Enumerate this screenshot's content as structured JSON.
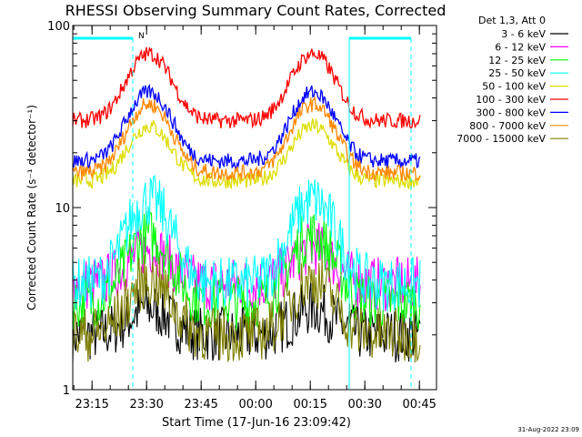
{
  "chart_data": {
    "type": "line",
    "title": "RHESSI Observing Summary Count Rates, Corrected",
    "xlabel": "Start Time (17-Jun-16 23:09:42)",
    "ylabel": "Corrected Count Rate (s⁻¹ detector⁻¹)",
    "y_scale": "log",
    "ylim": [
      1,
      100
    ],
    "y_ticks": [
      {
        "value": 1,
        "label": "1"
      },
      {
        "value": 10,
        "label": "10"
      },
      {
        "value": 100,
        "label": "100"
      }
    ],
    "x_unit": "minutes from 23:09:42",
    "xlim": [
      0,
      100
    ],
    "x_ticks": [
      {
        "value": 5.3,
        "label": "23:15"
      },
      {
        "value": 20.3,
        "label": "23:30"
      },
      {
        "value": 35.3,
        "label": "23:45"
      },
      {
        "value": 50.3,
        "label": "00:00"
      },
      {
        "value": 65.3,
        "label": "00:15"
      },
      {
        "value": 80.3,
        "label": "00:30"
      },
      {
        "value": 95.3,
        "label": "00:45"
      }
    ],
    "legend_header": "Det 1,3, Att 0",
    "legend_position": "top-right outside",
    "series": [
      {
        "name": "3 - 6 keV",
        "color": "#000000",
        "base": 2.0,
        "peak": 2.8
      },
      {
        "name": "6 - 12 keV",
        "color": "#ff00ff",
        "base": 3.8,
        "peak": 6.0
      },
      {
        "name": "12 - 25 keV",
        "color": "#00ff00",
        "base": 3.0,
        "peak": 7.0
      },
      {
        "name": "25 - 50 keV",
        "color": "#00ffff",
        "base": 3.8,
        "peak": 11.0
      },
      {
        "name": "50 - 100 keV",
        "color": "#dddd00",
        "base": 14.0,
        "peak": 28.0
      },
      {
        "name": "100 - 300 keV",
        "color": "#ff0000",
        "base": 30.0,
        "peak": 70.0
      },
      {
        "name": "300 - 800 keV",
        "color": "#0000ff",
        "base": 18.0,
        "peak": 43.0
      },
      {
        "name": "800 - 7000 keV",
        "color": "#ff8800",
        "base": 15.5,
        "peak": 37.0
      },
      {
        "name": "7000 - 15000 keV",
        "color": "#808000",
        "base": 2.0,
        "peak": 4.0
      }
    ],
    "peaks_minutes": [
      21,
      66
    ],
    "observing_markers": [
      {
        "label": "N",
        "start": 0,
        "end": 16.5,
        "color": "#00ffff"
      },
      {
        "label": "",
        "start": 76,
        "end": 93,
        "color": "#00ffff"
      }
    ]
  },
  "footer_timestamp": "31-Aug-2022 23:09"
}
